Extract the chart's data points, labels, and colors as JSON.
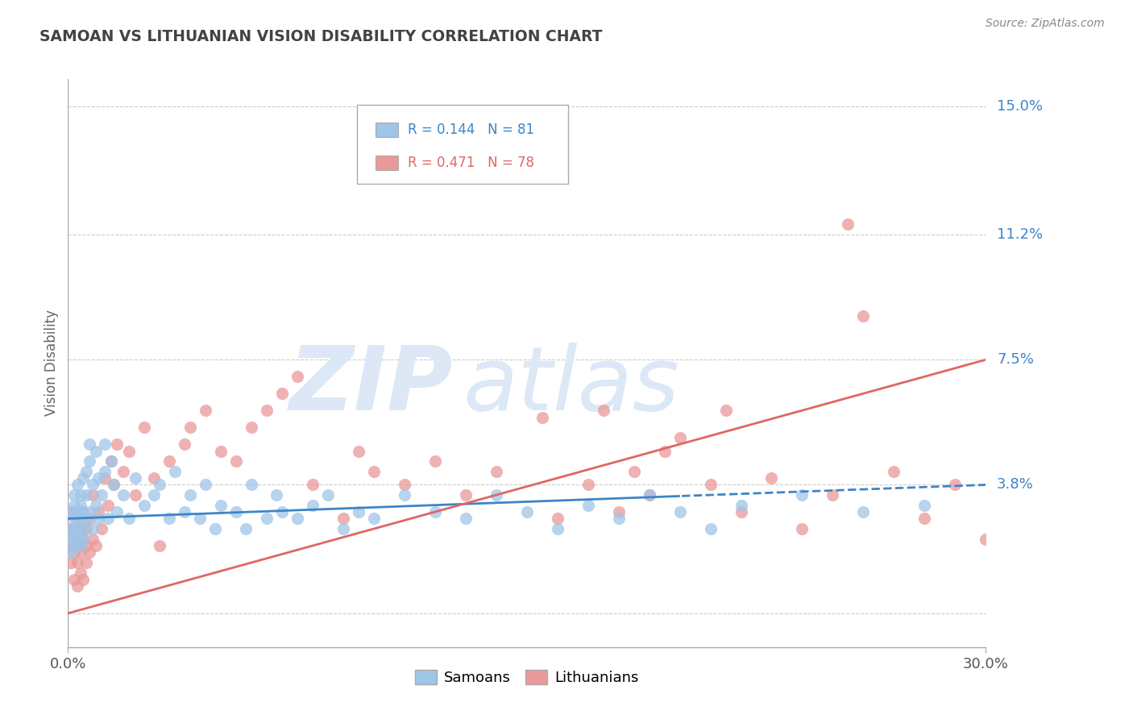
{
  "title": "SAMOAN VS LITHUANIAN VISION DISABILITY CORRELATION CHART",
  "source_text": "Source: ZipAtlas.com",
  "ylabel": "Vision Disability",
  "legend_labels": [
    "Samoans",
    "Lithuanians"
  ],
  "legend_r": [
    0.144,
    0.471
  ],
  "legend_n": [
    81,
    78
  ],
  "xlim": [
    0.0,
    0.3
  ],
  "ylim": [
    -0.01,
    0.158
  ],
  "yticks": [
    0.0,
    0.038,
    0.075,
    0.112,
    0.15
  ],
  "ytick_labels": [
    "",
    "3.8%",
    "7.5%",
    "11.2%",
    "15.0%"
  ],
  "xticks": [
    0.0,
    0.3
  ],
  "xtick_labels": [
    "0.0%",
    "30.0%"
  ],
  "color_samoans": "#9fc5e8",
  "color_lithuanians": "#ea9999",
  "color_samoans_line": "#3d85c8",
  "color_lithuanians_line": "#e06666",
  "color_ytick_label": "#3d85c8",
  "background_color": "#ffffff",
  "watermark_text": "ZIPatlas",
  "watermark_color": "#dce8f5",
  "grid_color": "#cccccc",
  "title_color": "#434343",
  "samoans_x": [
    0.001,
    0.001,
    0.001,
    0.001,
    0.002,
    0.002,
    0.002,
    0.002,
    0.002,
    0.003,
    0.003,
    0.003,
    0.003,
    0.004,
    0.004,
    0.004,
    0.004,
    0.005,
    0.005,
    0.005,
    0.005,
    0.006,
    0.006,
    0.006,
    0.007,
    0.007,
    0.007,
    0.008,
    0.008,
    0.009,
    0.009,
    0.01,
    0.01,
    0.011,
    0.012,
    0.012,
    0.013,
    0.014,
    0.015,
    0.016,
    0.018,
    0.02,
    0.022,
    0.025,
    0.028,
    0.03,
    0.033,
    0.035,
    0.038,
    0.04,
    0.043,
    0.045,
    0.048,
    0.05,
    0.055,
    0.058,
    0.06,
    0.065,
    0.068,
    0.07,
    0.075,
    0.08,
    0.085,
    0.09,
    0.095,
    0.1,
    0.11,
    0.12,
    0.13,
    0.14,
    0.15,
    0.16,
    0.17,
    0.18,
    0.19,
    0.2,
    0.21,
    0.22,
    0.24,
    0.26,
    0.28
  ],
  "samoans_y": [
    0.03,
    0.025,
    0.022,
    0.018,
    0.028,
    0.032,
    0.02,
    0.025,
    0.035,
    0.03,
    0.022,
    0.025,
    0.038,
    0.028,
    0.035,
    0.02,
    0.032,
    0.025,
    0.03,
    0.022,
    0.04,
    0.035,
    0.028,
    0.042,
    0.05,
    0.03,
    0.045,
    0.038,
    0.025,
    0.048,
    0.032,
    0.04,
    0.028,
    0.035,
    0.05,
    0.042,
    0.028,
    0.045,
    0.038,
    0.03,
    0.035,
    0.028,
    0.04,
    0.032,
    0.035,
    0.038,
    0.028,
    0.042,
    0.03,
    0.035,
    0.028,
    0.038,
    0.025,
    0.032,
    0.03,
    0.025,
    0.038,
    0.028,
    0.035,
    0.03,
    0.028,
    0.032,
    0.035,
    0.025,
    0.03,
    0.028,
    0.035,
    0.03,
    0.028,
    0.035,
    0.03,
    0.025,
    0.032,
    0.028,
    0.035,
    0.03,
    0.025,
    0.032,
    0.035,
    0.03,
    0.032
  ],
  "lithuanians_x": [
    0.001,
    0.001,
    0.001,
    0.001,
    0.002,
    0.002,
    0.002,
    0.002,
    0.003,
    0.003,
    0.003,
    0.003,
    0.004,
    0.004,
    0.004,
    0.005,
    0.005,
    0.005,
    0.006,
    0.006,
    0.006,
    0.007,
    0.007,
    0.008,
    0.008,
    0.009,
    0.01,
    0.011,
    0.012,
    0.013,
    0.014,
    0.015,
    0.016,
    0.018,
    0.02,
    0.022,
    0.025,
    0.028,
    0.03,
    0.033,
    0.038,
    0.04,
    0.045,
    0.05,
    0.055,
    0.06,
    0.065,
    0.07,
    0.075,
    0.08,
    0.09,
    0.095,
    0.1,
    0.11,
    0.12,
    0.13,
    0.14,
    0.155,
    0.16,
    0.17,
    0.175,
    0.18,
    0.185,
    0.19,
    0.195,
    0.2,
    0.21,
    0.215,
    0.22,
    0.23,
    0.24,
    0.25,
    0.255,
    0.26,
    0.27,
    0.28,
    0.29,
    0.3
  ],
  "lithuanians_y": [
    0.025,
    0.02,
    0.015,
    0.03,
    0.018,
    0.025,
    0.01,
    0.022,
    0.028,
    0.015,
    0.02,
    0.008,
    0.025,
    0.012,
    0.018,
    0.022,
    0.01,
    0.03,
    0.025,
    0.015,
    0.02,
    0.028,
    0.018,
    0.022,
    0.035,
    0.02,
    0.03,
    0.025,
    0.04,
    0.032,
    0.045,
    0.038,
    0.05,
    0.042,
    0.048,
    0.035,
    0.055,
    0.04,
    0.02,
    0.045,
    0.05,
    0.055,
    0.06,
    0.048,
    0.045,
    0.055,
    0.06,
    0.065,
    0.07,
    0.038,
    0.028,
    0.048,
    0.042,
    0.038,
    0.045,
    0.035,
    0.042,
    0.058,
    0.028,
    0.038,
    0.06,
    0.03,
    0.042,
    0.035,
    0.048,
    0.052,
    0.038,
    0.06,
    0.03,
    0.04,
    0.025,
    0.035,
    0.115,
    0.088,
    0.042,
    0.028,
    0.038,
    0.022
  ]
}
